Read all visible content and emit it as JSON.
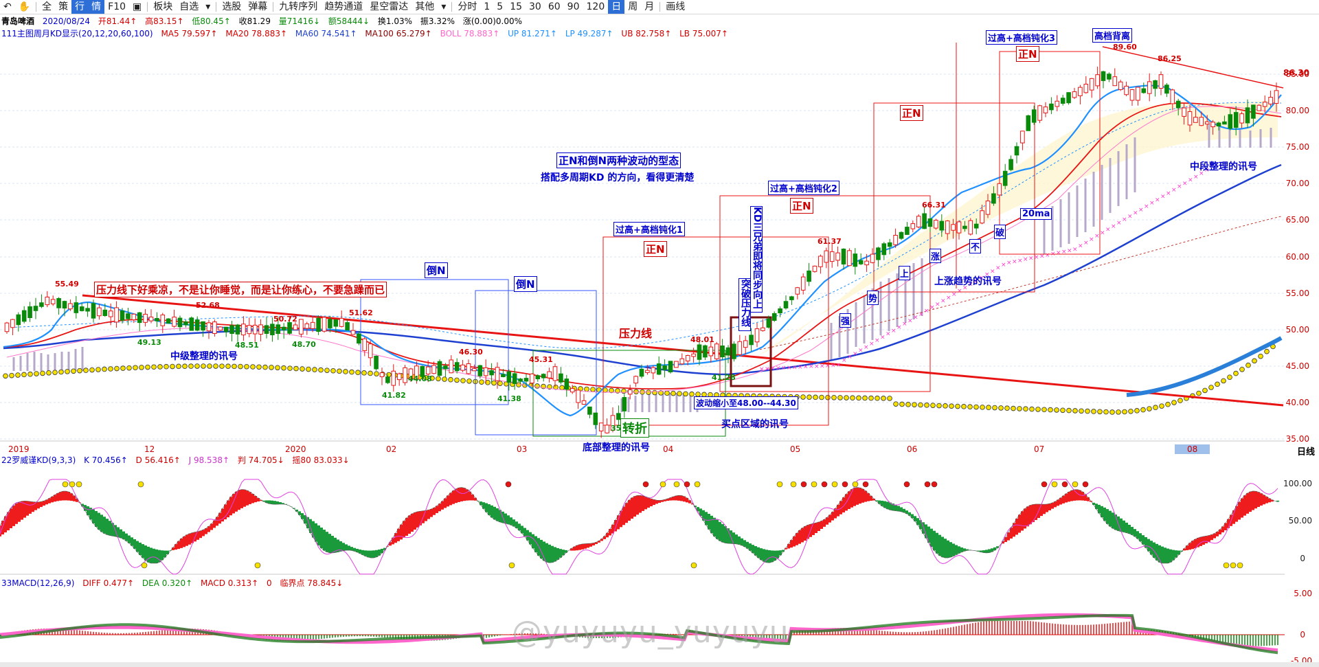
{
  "toolbar": {
    "items": [
      "全",
      "策",
      "行",
      "情",
      "F10",
      "板块",
      "自选",
      "选股",
      "弹幕",
      "九转序列",
      "趋势通道",
      "星空雷达",
      "其他",
      "分时",
      "1",
      "5",
      "15",
      "30",
      "60",
      "90",
      "120",
      "日",
      "周",
      "月",
      "画线"
    ]
  },
  "header": {
    "name": "青岛啤酒",
    "date": "2020/08/24",
    "open": "开81.44↑",
    "high": "高83.15↑",
    "low": "低80.45↑",
    "close": "收81.29",
    "volume": "量71416↓",
    "amount": "额58444↓",
    "turnover": "换1.03%",
    "amplitude": "振3.32%",
    "change": "涨(0.00)0.00%"
  },
  "ma_line": {
    "title": "111主图周月KD显示(20,12,20,60,100)",
    "ma5": "MA5 79.597↑",
    "ma20": "MA20 78.883↑",
    "ma60": "MA60 74.541↑",
    "ma100": "MA100 65.279↑",
    "boll": "BOLL 78.883↑",
    "up": "UP 81.271↑",
    "lp": "LP 49.287↑",
    "ub": "UB 82.758↑",
    "lb": "LB 75.007↑"
  },
  "y_axis": {
    "labels": [
      "85.00",
      "80.00",
      "75.00",
      "70.00",
      "65.00",
      "60.00",
      "55.00",
      "50.00",
      "45.00",
      "40.00",
      "35.00"
    ],
    "last": "86.30"
  },
  "x_axis": {
    "labels": [
      "2019",
      "12",
      "2020",
      "02",
      "03",
      "04",
      "05",
      "06",
      "07",
      "08"
    ],
    "day": "日线"
  },
  "price_labels": {
    "p1": "55.49",
    "p2": "52.68",
    "p3": "49.13",
    "p4": "48.51",
    "p5": "50.72",
    "p6": "48.70",
    "p7": "51.62",
    "p8": "41.82",
    "p9": "44.08",
    "p10": "46.30",
    "p11": "41.38",
    "p12": "45.31",
    "p13": "35",
    "p14": "48.01",
    "p15": "41.28",
    "p16": "61.37",
    "p17": "66.31",
    "p18": "89.60",
    "p19": "86.25"
  },
  "annotations": {
    "pressure_msg": "压力线下好乘凉，不是让你睡觉，而是让你练心，不要急躁而已",
    "mid_consolidation": "中级整理的讯号",
    "inv_n1": "倒N",
    "inv_n2": "倒N",
    "pressure_line": "压力线",
    "bottom_consolidation": "底部整理的讯号",
    "turn": "转折",
    "buy_zone": "买点区域的讯号",
    "range_shrink": "波动缩小至48.00--44.30",
    "kd_vertical": "KD三兄弟即将同步向上",
    "breakout_vertical": "突破压力线",
    "title_wave": "正N和倒N两种波动的型态",
    "subtitle_wave": "搭配多周期KD 的方向，看得更清楚",
    "overhigh1": "过高+高档钝化1",
    "overhigh2": "过高+高档钝化2",
    "overhigh3": "过高+高档钝化3",
    "zn1": "正N",
    "zn2": "正N",
    "zn3": "正N",
    "zn4": "正N",
    "high_div": "高档背离",
    "uptrend": "上涨趋势的讯号",
    "mid_segment": "中段整理的讯号",
    "ma20": "20ma",
    "v1": "强",
    "v2": "势",
    "v3": "上",
    "v4": "涨",
    "v5": "不",
    "v6": "破"
  },
  "kd_panel": {
    "title": "22罗威谨KD(9,3,3)",
    "k": "K 70.456↑",
    "d": "D 56.416↑",
    "j": "J 98.538↑",
    "pan": "判 74.705↓",
    "yao": "摇80 83.033↓",
    "y_labels": [
      "100.00",
      "50.00",
      "0"
    ]
  },
  "macd_panel": {
    "title": "33MACD(12,26,9)",
    "diff": "DIFF 0.477↑",
    "dea": "DEA 0.320↑",
    "macd": "MACD 0.313↑",
    "zero": "0",
    "critical": "临界点 78.845↓",
    "y_labels": [
      "5.00",
      "0",
      "-5.00"
    ]
  },
  "watermark": "@yuyuyu_yuyuyu",
  "colors": {
    "up": "#d10000",
    "down": "#0a8a0a",
    "blue": "#0000cc",
    "ma60": "#1e40d0",
    "pink": "#ff33cc",
    "yellow": "#f5e000"
  }
}
